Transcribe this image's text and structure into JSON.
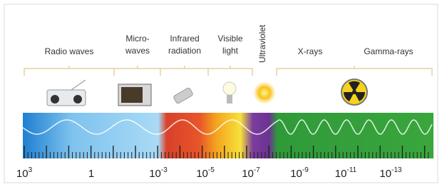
{
  "regions": [
    {
      "lines": [
        "Radio waves"
      ]
    },
    {
      "lines": [
        "Micro-",
        "waves"
      ]
    },
    {
      "lines": [
        "Infrared",
        "radiation"
      ]
    },
    {
      "lines": [
        "Visible",
        "light"
      ]
    },
    {
      "lines": [
        "Ultraviolet"
      ]
    },
    {
      "lines": [
        "X-rays"
      ]
    },
    {
      "lines": [
        "Gamma-rays"
      ]
    }
  ],
  "scale": [
    {
      "base": "10",
      "exponent": "3"
    },
    {
      "base": "1"
    },
    {
      "base": "10",
      "exponent": "-3"
    },
    {
      "base": "10",
      "exponent": "-5"
    },
    {
      "base": "10",
      "exponent": "-7"
    },
    {
      "base": "10",
      "exponent": "-9"
    },
    {
      "base": "10",
      "exponent": "-11"
    },
    {
      "base": "10",
      "exponent": "-13"
    }
  ]
}
